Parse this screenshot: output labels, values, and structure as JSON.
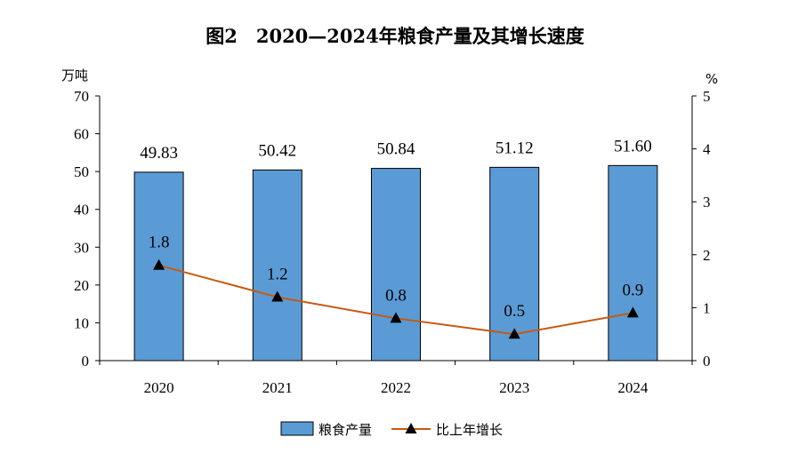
{
  "chart_data": {
    "type": "bar",
    "title": "图2　2020—2024年粮食产量及其增长速度",
    "categories": [
      "2020",
      "2021",
      "2022",
      "2023",
      "2024"
    ],
    "series": [
      {
        "name": "粮食产量",
        "type": "bar",
        "axis": "left",
        "values": [
          49.83,
          50.42,
          50.84,
          51.12,
          51.6
        ],
        "labels": [
          "49.83",
          "50.42",
          "50.84",
          "51.12",
          "51.60"
        ],
        "color": "#5b9bd5"
      },
      {
        "name": "比上年增长",
        "type": "line",
        "axis": "right",
        "values": [
          1.8,
          1.2,
          0.8,
          0.5,
          0.9
        ],
        "labels": [
          "1.8",
          "1.2",
          "0.8",
          "0.5",
          "0.9"
        ],
        "color": "#c55a11",
        "marker": "triangle"
      }
    ],
    "y_left": {
      "unit": "万吨",
      "ylim": [
        0,
        70
      ],
      "ticks": [
        "0",
        "10",
        "20",
        "30",
        "40",
        "50",
        "60",
        "70"
      ]
    },
    "y_right": {
      "unit": "%",
      "ylim": [
        0,
        5
      ],
      "ticks": [
        "0",
        "1",
        "2",
        "3",
        "4",
        "5"
      ]
    },
    "grid": false,
    "legend_position": "bottom-center"
  }
}
